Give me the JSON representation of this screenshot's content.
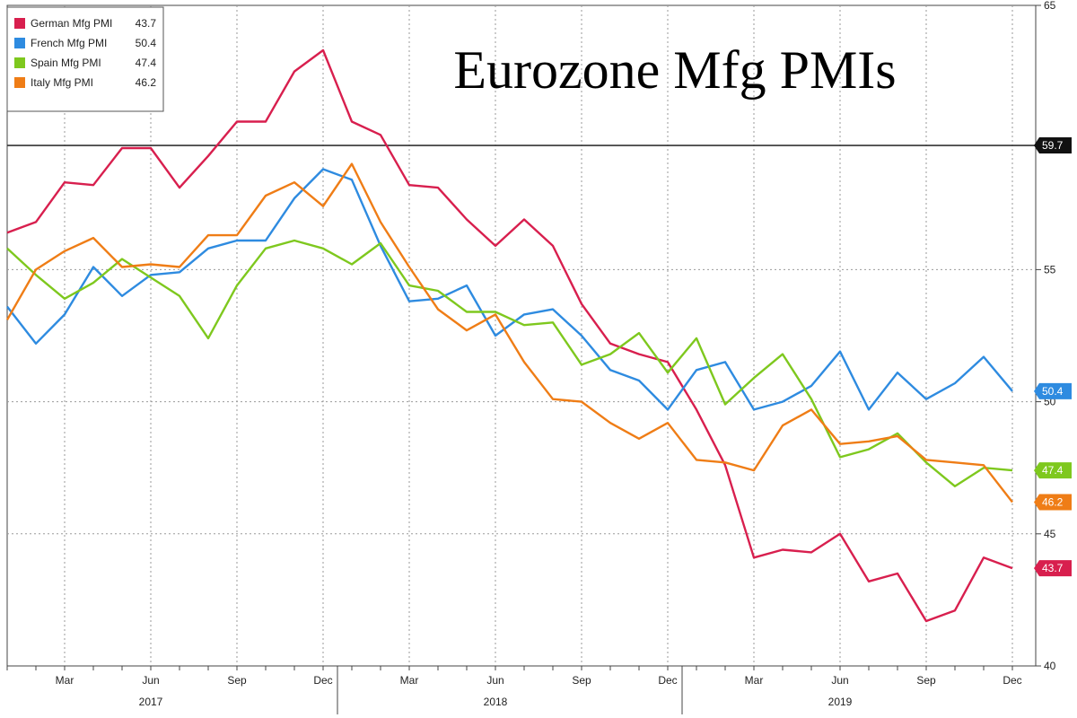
{
  "chart_data": {
    "type": "line",
    "title": "Eurozone Mfg PMIs",
    "xlabel": "",
    "ylabel": "",
    "ylim": [
      40,
      65
    ],
    "yticks": [
      40,
      45,
      50,
      55,
      65
    ],
    "x_tick_labels": [
      "Mar",
      "Jun",
      "Sep",
      "Dec",
      "Mar",
      "Jun",
      "Sep",
      "Dec",
      "Mar",
      "Jun",
      "Sep",
      "Dec"
    ],
    "x_tick_months": [
      2,
      5,
      8,
      11,
      14,
      17,
      20,
      23,
      26,
      29,
      32,
      35
    ],
    "year_labels": [
      {
        "label": "2017",
        "month": 5
      },
      {
        "label": "2018",
        "month": 17
      },
      {
        "label": "2019",
        "month": 29
      }
    ],
    "year_dividers": [
      11.5,
      23.5
    ],
    "reference_line": {
      "value": 59.7,
      "label": "59.7"
    },
    "series": [
      {
        "name": "German Mfg PMI",
        "last": "43.7",
        "color": "#d81f4e",
        "values": [
          56.4,
          56.8,
          58.3,
          58.2,
          59.6,
          59.6,
          58.1,
          59.3,
          60.6,
          60.6,
          62.5,
          63.3,
          60.6,
          60.1,
          58.2,
          58.1,
          56.9,
          55.9,
          56.9,
          55.9,
          53.7,
          52.2,
          51.8,
          51.5,
          49.7,
          47.6,
          44.1,
          44.4,
          44.3,
          45.0,
          43.2,
          43.5,
          41.7,
          42.1,
          44.1,
          43.7
        ]
      },
      {
        "name": "French Mfg PMI",
        "last": "50.4",
        "color": "#2e8be0",
        "values": [
          53.6,
          52.2,
          53.3,
          55.1,
          54.0,
          54.8,
          54.9,
          55.8,
          56.1,
          56.1,
          57.7,
          58.8,
          58.4,
          55.9,
          53.8,
          53.9,
          54.4,
          52.5,
          53.3,
          53.5,
          52.5,
          51.2,
          50.8,
          49.7,
          51.2,
          51.5,
          49.7,
          50.0,
          50.6,
          51.9,
          49.7,
          51.1,
          50.1,
          50.7,
          51.7,
          50.4
        ]
      },
      {
        "name": "Spain Mfg PMI",
        "last": "47.4",
        "color": "#7ec81e",
        "values": [
          55.8,
          54.8,
          53.9,
          54.5,
          55.4,
          54.7,
          54.0,
          52.4,
          54.4,
          55.8,
          56.1,
          55.8,
          55.2,
          56.0,
          54.4,
          54.2,
          53.4,
          53.4,
          52.9,
          53.0,
          51.4,
          51.8,
          52.6,
          51.1,
          52.4,
          49.9,
          50.9,
          51.8,
          50.1,
          47.9,
          48.2,
          48.8,
          47.7,
          46.8,
          47.5,
          47.4
        ]
      },
      {
        "name": "Italy Mfg PMI",
        "last": "46.2",
        "color": "#ef7d16",
        "values": [
          53.1,
          55.0,
          55.7,
          56.2,
          55.1,
          55.2,
          55.1,
          56.3,
          56.3,
          57.8,
          58.3,
          57.4,
          59.0,
          56.8,
          55.1,
          53.5,
          52.7,
          53.3,
          51.5,
          50.1,
          50.0,
          49.2,
          48.6,
          49.2,
          47.8,
          47.7,
          47.4,
          49.1,
          49.7,
          48.4,
          48.5,
          48.7,
          47.8,
          47.7,
          47.6,
          46.2
        ]
      }
    ]
  }
}
